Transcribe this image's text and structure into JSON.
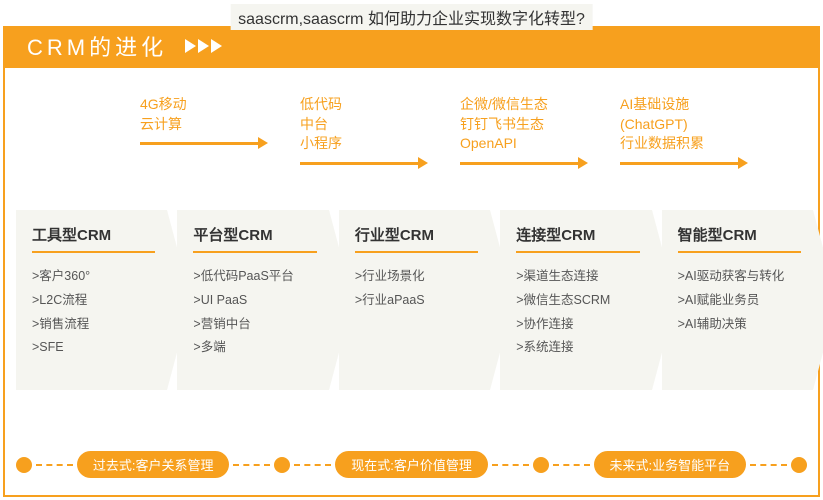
{
  "pageTitle": "saascrm,saascrm 如何助力企业实现数字化转型?",
  "header": "CRM的进化",
  "colors": {
    "brand": "#f7a01e",
    "stageBg": "#f5f5f0"
  },
  "drivers": [
    {
      "lines": [
        "4G移动",
        "云计算"
      ]
    },
    {
      "lines": [
        "低代码",
        "中台",
        "小程序"
      ]
    },
    {
      "lines": [
        "企微/微信生态",
        "钉钉飞书生态",
        "OpenAPI"
      ]
    },
    {
      "lines": [
        "AI基础设施",
        "(ChatGPT)",
        "行业数据积累"
      ]
    }
  ],
  "stages": [
    {
      "title": "工具型CRM",
      "items": [
        ">客户360°",
        ">L2C流程",
        ">销售流程",
        ">SFE"
      ]
    },
    {
      "title": "平台型CRM",
      "items": [
        ">低代码PaaS平台",
        ">UI PaaS",
        ">营销中台",
        ">多端"
      ]
    },
    {
      "title": "行业型CRM",
      "items": [
        ">行业场景化",
        ">行业aPaaS"
      ]
    },
    {
      "title": "连接型CRM",
      "items": [
        ">渠道生态连接",
        ">微信生态SCRM",
        ">协作连接",
        ">系统连接"
      ]
    },
    {
      "title": "智能型CRM",
      "items": [
        ">AI驱动获客与转化",
        ">AI赋能业务员",
        ">AI辅助决策"
      ]
    }
  ],
  "timeline": [
    "过去式:客户关系管理",
    "现在式:客户价值管理",
    "未来式:业务智能平台"
  ]
}
